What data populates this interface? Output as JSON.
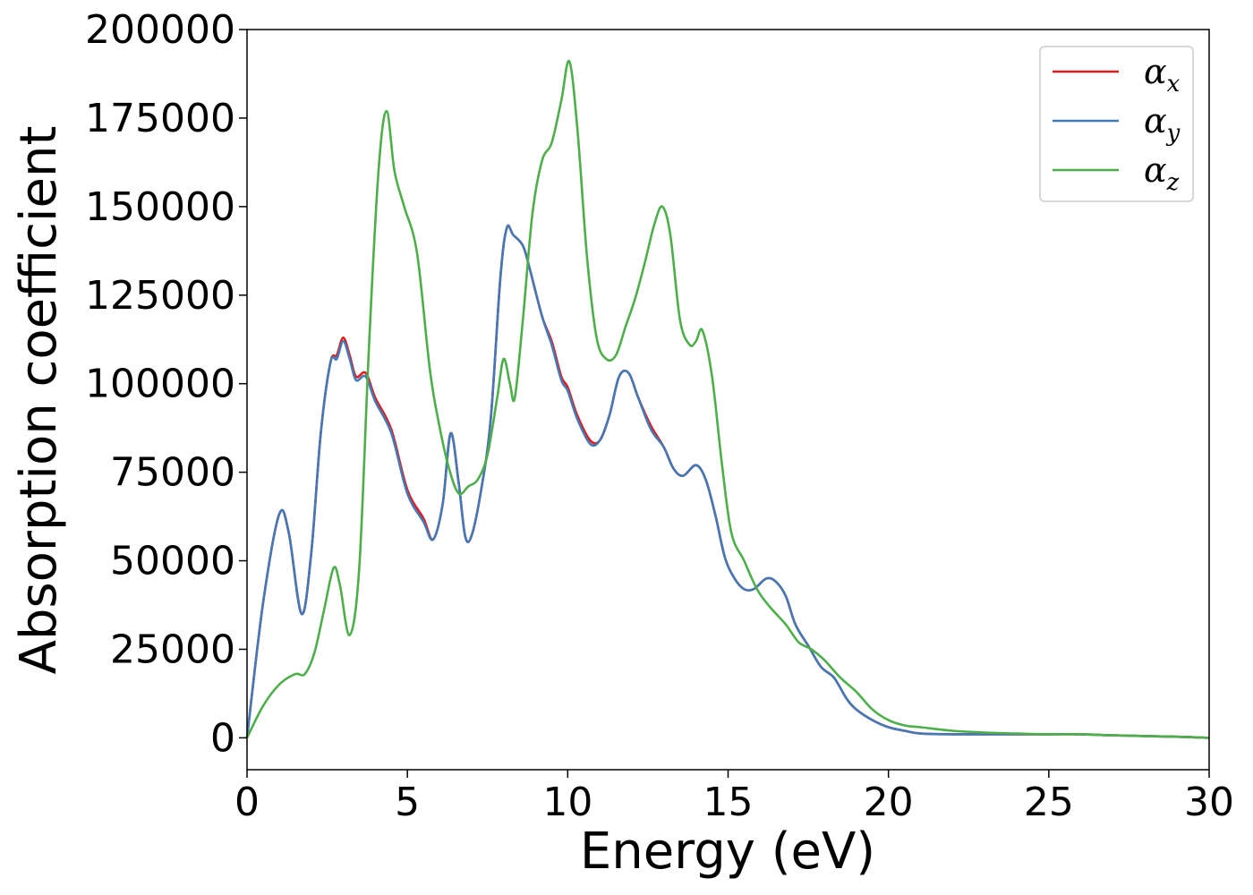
{
  "chart_data": {
    "type": "line",
    "title": "",
    "xlabel": "Energy (eV)",
    "ylabel": "Absorption coefficient",
    "xlim": [
      0,
      30
    ],
    "ylim": [
      -9000,
      200000
    ],
    "xticks": [
      0,
      5,
      10,
      15,
      20,
      25,
      30
    ],
    "xtick_labels": [
      "0",
      "5",
      "10",
      "15",
      "20",
      "25",
      "30"
    ],
    "yticks": [
      0,
      25000,
      50000,
      75000,
      100000,
      125000,
      150000,
      175000,
      200000
    ],
    "ytick_labels": [
      "0",
      "25000",
      "50000",
      "75000",
      "100000",
      "125000",
      "150000",
      "175000",
      "200000"
    ],
    "grid": false,
    "legend_position": "top-right",
    "series": [
      {
        "name": "αx",
        "symbol": "α",
        "subscript": "x",
        "color": "#e41a1c",
        "x": [
          0,
          0.5,
          1.0,
          1.3,
          1.7,
          2.0,
          2.3,
          2.6,
          2.8,
          3.0,
          3.2,
          3.4,
          3.7,
          4.0,
          4.5,
          5.0,
          5.5,
          5.8,
          6.1,
          6.35,
          6.6,
          6.8,
          7.0,
          7.3,
          7.6,
          7.9,
          8.1,
          8.3,
          8.6,
          8.8,
          9.2,
          9.5,
          9.8,
          10.0,
          10.3,
          10.7,
          11.0,
          11.3,
          11.6,
          11.9,
          12.2,
          12.6,
          13.0,
          13.3,
          13.6,
          14.0,
          14.3,
          14.6,
          14.9,
          15.2,
          15.5,
          15.8,
          16.2,
          16.5,
          16.8,
          17.1,
          17.5,
          17.9,
          18.3,
          18.7,
          19.0,
          19.5,
          20.0,
          20.5,
          21.0,
          22.0,
          23.0,
          24.0,
          25.0,
          26.0,
          27.0,
          28.0,
          29.0,
          30.0
        ],
        "values": [
          0,
          38000,
          63000,
          58000,
          35000,
          52000,
          86000,
          106000,
          108000,
          113000,
          108000,
          102000,
          103000,
          96000,
          87000,
          70000,
          62000,
          56000,
          66000,
          86000,
          72000,
          57000,
          57000,
          70000,
          90000,
          130000,
          144000,
          142000,
          139000,
          133000,
          119000,
          112000,
          102000,
          99000,
          91000,
          84000,
          84000,
          91000,
          102000,
          103000,
          96000,
          88000,
          82000,
          76000,
          74000,
          77000,
          73000,
          63000,
          51000,
          45000,
          42000,
          42000,
          45000,
          44000,
          40000,
          32000,
          26000,
          20000,
          17000,
          11000,
          8000,
          5000,
          3000,
          2000,
          1200,
          1000,
          1000,
          1000,
          1000,
          1000,
          700,
          500,
          300,
          0
        ]
      },
      {
        "name": "αy",
        "symbol": "α",
        "subscript": "y",
        "color": "#4279b6",
        "x": [
          0,
          0.5,
          1.0,
          1.3,
          1.7,
          2.0,
          2.3,
          2.6,
          2.8,
          3.0,
          3.2,
          3.4,
          3.7,
          4.0,
          4.5,
          5.0,
          5.5,
          5.8,
          6.1,
          6.35,
          6.6,
          6.8,
          7.0,
          7.3,
          7.6,
          7.9,
          8.1,
          8.3,
          8.6,
          8.8,
          9.2,
          9.5,
          9.8,
          10.0,
          10.3,
          10.7,
          11.0,
          11.3,
          11.6,
          11.9,
          12.2,
          12.6,
          13.0,
          13.3,
          13.6,
          14.0,
          14.3,
          14.6,
          14.9,
          15.2,
          15.5,
          15.8,
          16.2,
          16.5,
          16.8,
          17.1,
          17.5,
          17.9,
          18.3,
          18.7,
          19.0,
          19.5,
          20.0,
          20.5,
          21.0,
          22.0,
          23.0,
          24.0,
          25.0,
          26.0,
          27.0,
          28.0,
          29.0,
          30.0
        ],
        "values": [
          0,
          38000,
          63000,
          58000,
          35000,
          52000,
          86000,
          106000,
          107000,
          112000,
          107000,
          101000,
          102000,
          95000,
          86000,
          69000,
          61000,
          56000,
          66000,
          86000,
          72000,
          57000,
          57000,
          70000,
          90000,
          130000,
          144000,
          142000,
          139000,
          133000,
          119000,
          111000,
          101000,
          98000,
          90000,
          83000,
          84000,
          91000,
          102000,
          103000,
          96000,
          87000,
          82000,
          76000,
          74000,
          77000,
          73000,
          63000,
          51000,
          45000,
          42000,
          42000,
          45000,
          44000,
          40000,
          32000,
          26000,
          20000,
          17000,
          11000,
          8000,
          5000,
          3000,
          2000,
          1200,
          1000,
          1000,
          1000,
          1000,
          1000,
          700,
          500,
          300,
          0
        ]
      },
      {
        "name": "αz",
        "symbol": "α",
        "subscript": "z",
        "color": "#4daf4a",
        "x": [
          0,
          0.5,
          1.0,
          1.5,
          1.8,
          2.1,
          2.4,
          2.7,
          2.9,
          3.2,
          3.5,
          3.8,
          4.1,
          4.35,
          4.6,
          4.9,
          5.3,
          5.7,
          6.0,
          6.3,
          6.6,
          6.9,
          7.2,
          7.5,
          7.8,
          8.0,
          8.2,
          8.35,
          8.6,
          8.9,
          9.2,
          9.5,
          9.8,
          10.05,
          10.3,
          10.6,
          10.9,
          11.2,
          11.5,
          11.8,
          12.1,
          12.4,
          12.7,
          12.95,
          13.2,
          13.5,
          13.8,
          14.0,
          14.2,
          14.5,
          14.8,
          15.1,
          15.5,
          15.9,
          16.3,
          16.8,
          17.2,
          17.6,
          18.0,
          18.5,
          19.0,
          19.5,
          20.0,
          20.5,
          21.0,
          22.0,
          23.0,
          24.0,
          25.0,
          26.0,
          27.0,
          28.0,
          29.0,
          30.0
        ],
        "values": [
          0,
          9000,
          15000,
          18000,
          18000,
          24000,
          36000,
          48000,
          43000,
          29000,
          48000,
          110000,
          160000,
          177000,
          160000,
          150000,
          137000,
          104000,
          88000,
          76000,
          69000,
          71000,
          73000,
          80000,
          96000,
          107000,
          100000,
          96000,
          118000,
          148000,
          163000,
          168000,
          180000,
          191000,
          172000,
          136000,
          113000,
          107000,
          108000,
          116000,
          124000,
          134000,
          145000,
          150000,
          142000,
          118000,
          111000,
          112000,
          115000,
          102000,
          78000,
          58000,
          50000,
          42000,
          37000,
          32000,
          27000,
          25000,
          22000,
          17000,
          13000,
          8000,
          5000,
          3500,
          3000,
          2000,
          1500,
          1200,
          1000,
          1000,
          700,
          500,
          300,
          0
        ]
      }
    ]
  }
}
